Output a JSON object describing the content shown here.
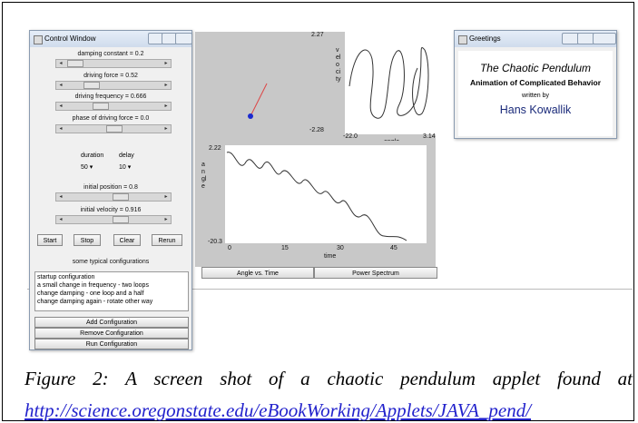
{
  "control_window": {
    "title": "Control Window",
    "sliders": [
      "damping constant = 0.2",
      "driving force = 0.52",
      "driving frequency = 0.666",
      "phase of driving force = 0.0"
    ],
    "duration_label": "duration",
    "delay_label": "delay",
    "duration_value": "50",
    "delay_value": "10",
    "initial_position": "initial position = 0.8",
    "initial_velocity": "initial velocity = 0.916",
    "buttons": [
      "Start",
      "Stop",
      "Clear",
      "Rerun"
    ],
    "configurations_label": "some typical configurations",
    "configurations": [
      "startup configuration",
      "a small change in frequency - two loops",
      "change damping - one loop and a half",
      "change damping again - rotate other way"
    ],
    "config_buttons": [
      "Add Configuration",
      "Remove Configuration",
      "Run Configuration"
    ]
  },
  "phase_plot": {
    "y_label": "velocity",
    "y_max": "2.27",
    "y_min": "-2.28",
    "x_min": "-22.0",
    "x_max": "3.14",
    "x_label": "angle"
  },
  "angle_plot": {
    "y_label": "angle",
    "y_max": "2.22",
    "y_min": "-20.3",
    "x_ticks": [
      "0",
      "15",
      "30",
      "45"
    ],
    "x_label": "time"
  },
  "tabs": [
    "Angle vs. Time",
    "Power Spectrum"
  ],
  "greetings": {
    "title": "Greetings",
    "heading": "The Chaotic Pendulum",
    "subheading": "Animation of Complicated Behavior",
    "written_by": "written by",
    "author": "Hans Kowallik"
  },
  "caption": {
    "text": "Figure 2: A screen shot of a chaotic pendulum applet found at",
    "link": "http://science.oregonstate.edu/eBookWorking/Applets/JAVA_pend/"
  }
}
